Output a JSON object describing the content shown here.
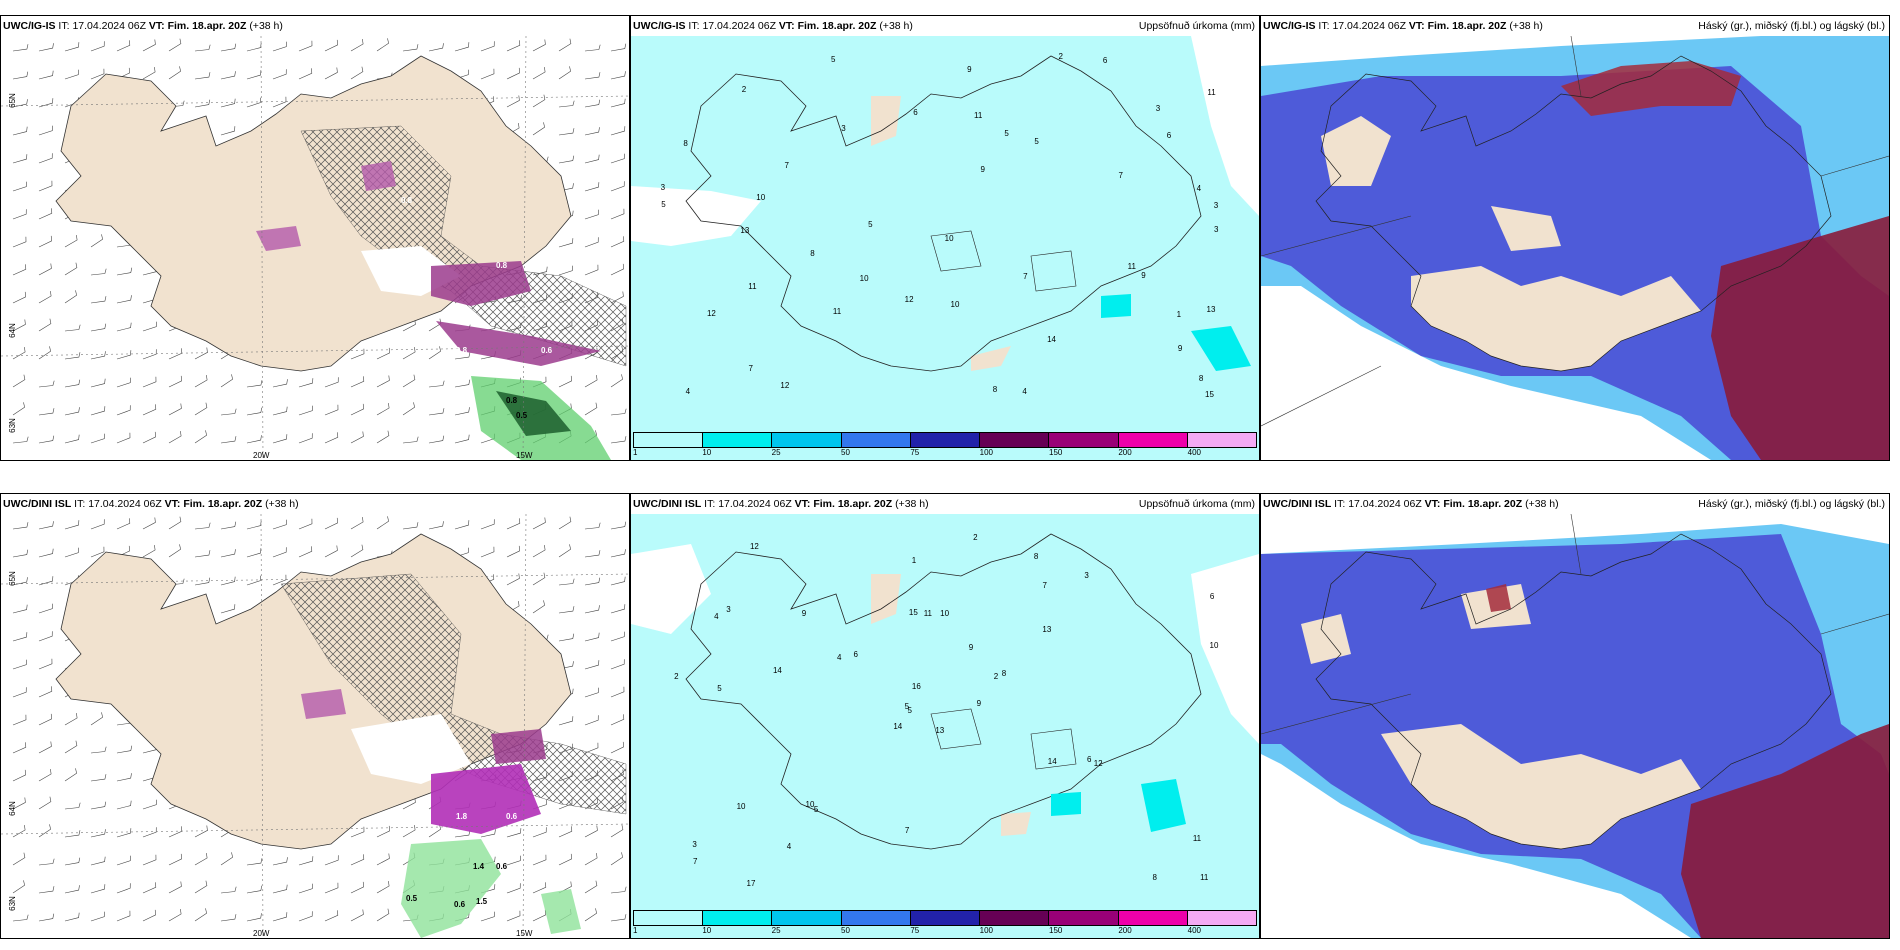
{
  "panels": {
    "top_left": {
      "model": "UWC/IG-IS",
      "it_label": "IT:",
      "it_value": "17.04.2024 06Z",
      "vt_label": "VT:",
      "vt_value": "Fim. 18.apr. 20Z",
      "lead": "(+38 h)",
      "right": ""
    },
    "top_mid": {
      "model": "UWC/IG-IS",
      "it_label": "IT:",
      "it_value": "17.04.2024 06Z",
      "vt_label": "VT:",
      "vt_value": "Fim. 18.apr. 20Z",
      "lead": "(+38 h)",
      "right": "Uppsöfnuð úrkoma (mm)"
    },
    "top_right": {
      "model": "UWC/IG-IS",
      "it_label": "IT:",
      "it_value": "17.04.2024 06Z",
      "vt_label": "VT:",
      "vt_value": "Fim. 18.apr. 20Z",
      "lead": "(+38 h)",
      "right": "Háský (gr.), miðský (fj.bl.) og lágský (bl.)"
    },
    "bot_left": {
      "model": "UWC/DINI ISL",
      "it_label": "IT:",
      "it_value": "17.04.2024 06Z",
      "vt_label": "VT:",
      "vt_value": "Fim. 18.apr. 20Z",
      "lead": "(+38 h)",
      "right": ""
    },
    "bot_mid": {
      "model": "UWC/DINI ISL",
      "it_label": "IT:",
      "it_value": "17.04.2024 06Z",
      "vt_label": "VT:",
      "vt_value": "Fim. 18.apr. 20Z",
      "lead": "(+38 h)",
      "right": "Uppsöfnuð úrkoma (mm)"
    },
    "bot_right": {
      "model": "UWC/DINI ISL",
      "it_label": "IT:",
      "it_value": "17.04.2024 06Z",
      "vt_label": "VT:",
      "vt_value": "Fim. 18.apr. 20Z",
      "lead": "(+38 h)",
      "right": "Háský (gr.), miðský (fj.bl.) og lágský (bl.)"
    }
  },
  "axis_labels": {
    "lon_20w": "20W",
    "lon_15w": "15W",
    "lat_top_a": "65N",
    "lat_mid_a": "64N",
    "lat_bot_a": "63N",
    "lat_top_b": "65N",
    "lat_mid_b": "64N",
    "lat_bot_b": "63N"
  },
  "colorbar": {
    "colors": [
      "#b7fcfc",
      "#00eeee",
      "#00c5ee",
      "#3377ee",
      "#2222aa",
      "#660055",
      "#990077",
      "#ee00aa",
      "#f4aaf4"
    ],
    "ticks": [
      "1",
      "10",
      "25",
      "50",
      "75",
      "100",
      "150",
      "200",
      "400"
    ]
  },
  "colors": {
    "land": "#f1e2cf",
    "precip_light": "#b9fbfb",
    "low_cloud": "#4b4fd6",
    "high_cloud": "#8a1b3a",
    "mid_cloud": "#39b6f2",
    "snow_purple": "#9b3b8d",
    "rain_green": "#5fcf6e"
  },
  "top_left_labels": [
    "0.8",
    "0.8",
    "0.6",
    "0.8",
    "0.5",
    "0.8"
  ],
  "bot_left_labels": [
    "0.6",
    "1.8",
    "0.6",
    "1.4",
    "0.5",
    "1.5",
    "0.6"
  ],
  "top_mid_numbers": [
    "3",
    "4",
    "5",
    "3",
    "5",
    "13",
    "10",
    "2",
    "1",
    "3",
    "7",
    "9",
    "7",
    "11",
    "12",
    "10",
    "8",
    "3",
    "5",
    "6",
    "8",
    "11",
    "7",
    "11",
    "9",
    "6",
    "4",
    "14",
    "8",
    "11",
    "12",
    "15",
    "13",
    "9",
    "10",
    "5",
    "3",
    "7",
    "6",
    "11",
    "4",
    "8",
    "12",
    "10",
    "9",
    "2",
    "5"
  ],
  "bot_mid_numbers": [
    "13",
    "4",
    "5",
    "3",
    "2",
    "5",
    "8",
    "10",
    "7",
    "9",
    "12",
    "11",
    "5",
    "6",
    "14",
    "13",
    "17",
    "15",
    "9",
    "10",
    "6",
    "7",
    "4",
    "11",
    "8",
    "12",
    "3",
    "1",
    "2",
    "14",
    "10",
    "5",
    "7",
    "16",
    "9",
    "3",
    "10",
    "8",
    "11",
    "6",
    "2",
    "4",
    "14"
  ]
}
